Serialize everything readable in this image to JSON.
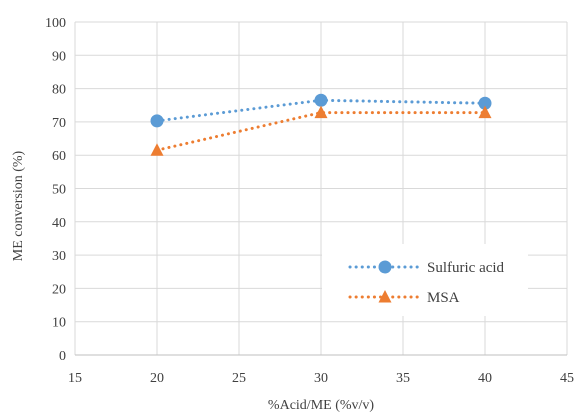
{
  "chart_data": {
    "type": "line",
    "title": "",
    "xlabel": "%Acid/ME (%v/v)",
    "ylabel": "ME conversion (%)",
    "xlim": [
      15,
      45
    ],
    "ylim": [
      0,
      100
    ],
    "x_ticks": [
      15,
      20,
      25,
      30,
      35,
      40,
      45
    ],
    "y_ticks": [
      0,
      10,
      20,
      30,
      40,
      50,
      60,
      70,
      80,
      90,
      100
    ],
    "grid": true,
    "legend_position": "bottom-right",
    "series": [
      {
        "name": "Sulfuric acid",
        "x": [
          20,
          30,
          40
        ],
        "y": [
          70.3,
          76.5,
          75.6
        ],
        "color": "#5b9bd5",
        "marker": "circle",
        "line_style": "dotted"
      },
      {
        "name": "MSA",
        "x": [
          20,
          30,
          40
        ],
        "y": [
          61.5,
          72.8,
          72.8
        ],
        "color": "#ed7d31",
        "marker": "triangle",
        "line_style": "dotted"
      }
    ]
  }
}
